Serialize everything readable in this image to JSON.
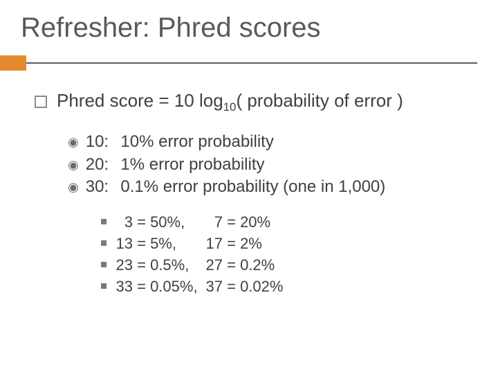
{
  "colors": {
    "accent": "#e38a2e",
    "rule": "#595959",
    "text": "#404040",
    "title": "#595959",
    "background": "#ffffff"
  },
  "title": "Refresher: Phred scores",
  "formula_pre": "Phred score = 10 log",
  "formula_sub": "10",
  "formula_post": "( probability of error )",
  "examples": [
    {
      "score": "10:",
      "text": "10% error probability"
    },
    {
      "score": "20:",
      "text": "1% error probability"
    },
    {
      "score": "30:",
      "text": "0.1%  error probability   (one in 1,000)"
    }
  ],
  "pairs": [
    {
      "a_num": "3",
      "a_eq": " = 50%,",
      "b_num": "7",
      "b_eq": " = 20%"
    },
    {
      "a_num": "13",
      "a_eq": " = 5%,",
      "b_num": "17",
      "b_eq": " = 2%"
    },
    {
      "a_num": "23",
      "a_eq": " = 0.5%,",
      "b_num": "27",
      "b_eq": " = 0.2%"
    },
    {
      "a_num": "33",
      "a_eq": " = 0.05%,",
      "b_num": "37",
      "b_eq": " = 0.02%"
    }
  ]
}
